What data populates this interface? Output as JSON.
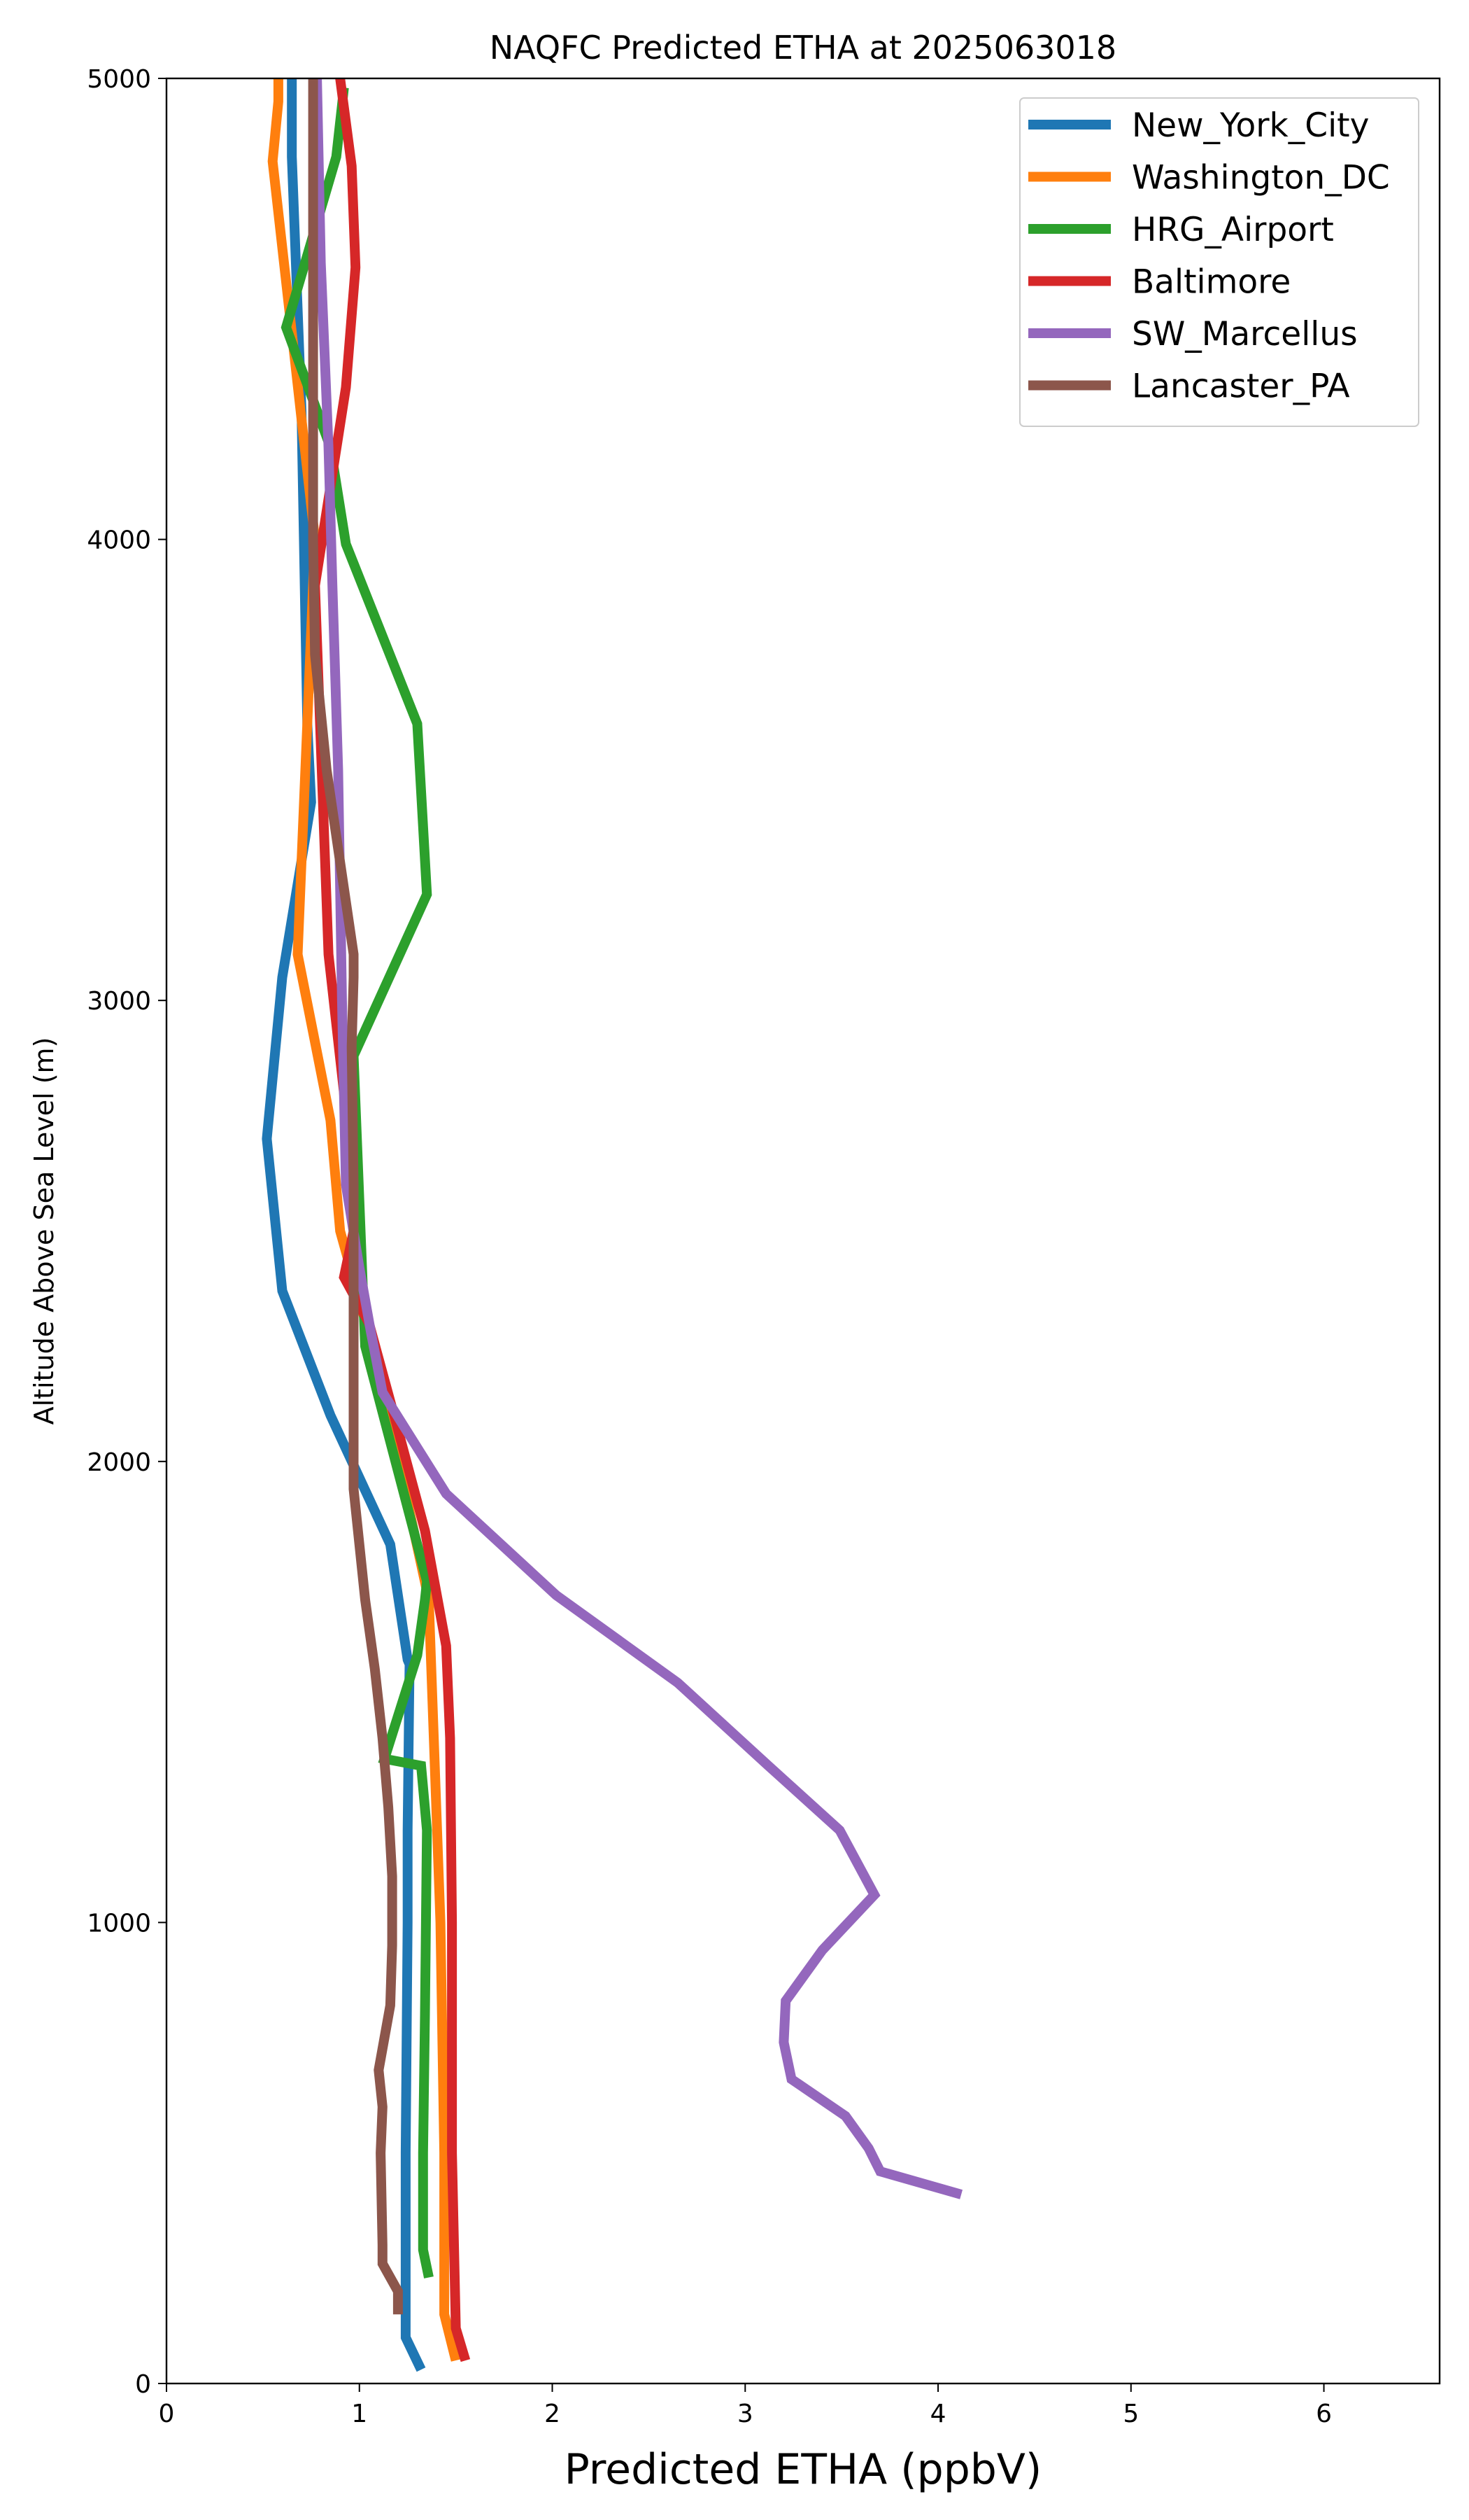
{
  "chart_data": {
    "type": "line",
    "title": "NAQFC Predicted ETHA at 2025063018",
    "xlabel": "Predicted ETHA (ppbV)",
    "ylabel": "Altitude Above Sea Level (m)",
    "xlim": [
      0,
      6.6
    ],
    "ylim": [
      0,
      5000
    ],
    "xticks": [
      0,
      1,
      2,
      3,
      4,
      5,
      6
    ],
    "yticks": [
      0,
      1000,
      2000,
      3000,
      4000,
      5000
    ],
    "legend_position": "top-right",
    "grid": false,
    "series": [
      {
        "name": "New_York_City",
        "color": "#1f77b4",
        "x": [
          1.32,
          1.24,
          1.24,
          1.25,
          1.25,
          1.26,
          1.25,
          1.16,
          0.85,
          0.6,
          0.52,
          0.6,
          0.75,
          0.73,
          0.7,
          0.65,
          0.65
        ],
        "y": [
          30,
          100,
          500,
          1000,
          1200,
          1560,
          1570,
          1820,
          2100,
          2370,
          2700,
          3050,
          3430,
          3600,
          4280,
          4830,
          5000
        ]
      },
      {
        "name": "Washington_DC",
        "color": "#ff7f0e",
        "x": [
          1.5,
          1.44,
          1.44,
          1.42,
          1.36,
          1.1,
          0.9,
          0.85,
          0.68,
          0.72,
          0.77,
          0.55,
          0.58,
          0.58
        ],
        "y": [
          50,
          150,
          500,
          1000,
          1700,
          2200,
          2500,
          2740,
          3100,
          3500,
          4000,
          4820,
          4950,
          5000
        ]
      },
      {
        "name": "HRG_Airport",
        "color": "#2ca02c",
        "x": [
          1.36,
          1.33,
          1.33,
          1.34,
          1.35,
          1.32,
          1.13,
          1.3,
          1.34,
          1.35,
          1.03,
          0.97,
          1.35,
          1.3,
          0.93,
          0.85,
          0.62,
          0.88,
          0.92
        ],
        "y": [
          230,
          290,
          500,
          800,
          1200,
          1340,
          1355,
          1580,
          1700,
          1740,
          2250,
          2880,
          3230,
          3600,
          3990,
          4200,
          4460,
          4830,
          4980
        ]
      },
      {
        "name": "Baltimore",
        "color": "#d62728",
        "x": [
          1.55,
          1.5,
          1.48,
          1.48,
          1.47,
          1.45,
          1.34,
          1.18,
          1.05,
          0.92,
          0.97,
          0.92,
          0.84,
          0.77,
          0.93,
          0.98,
          0.96,
          0.9
        ],
        "y": [
          50,
          120,
          500,
          1000,
          1400,
          1600,
          1850,
          2100,
          2300,
          2400,
          2500,
          2800,
          3100,
          3900,
          4330,
          4590,
          4810,
          5000
        ]
      },
      {
        "name": "SW_Marcellus",
        "color": "#9467bd",
        "x": [
          4.12,
          3.7,
          3.64,
          3.52,
          3.24,
          3.2,
          3.21,
          3.4,
          3.67,
          3.49,
          3.12,
          2.65,
          2.02,
          1.45,
          1.12,
          1.06,
          1.0,
          0.93,
          0.91,
          0.89,
          0.86,
          0.84,
          0.8,
          0.78
        ],
        "y": [
          410,
          460,
          510,
          580,
          660,
          740,
          830,
          940,
          1060,
          1200,
          1340,
          1520,
          1710,
          1930,
          2150,
          2280,
          2420,
          2600,
          3000,
          3500,
          3900,
          4200,
          4600,
          5000
        ]
      },
      {
        "name": "Lancaster_PA",
        "color": "#8c564b",
        "x": [
          1.2,
          1.2,
          1.12,
          1.12,
          1.11,
          1.12,
          1.1,
          1.16,
          1.17,
          1.17,
          1.15,
          1.12,
          1.08,
          1.03,
          0.97,
          0.97,
          0.97,
          0.96,
          0.97,
          0.97,
          0.9,
          0.83,
          0.77,
          0.76,
          0.76,
          0.76
        ],
        "y": [
          150,
          200,
          260,
          300,
          500,
          600,
          680,
          820,
          950,
          1100,
          1250,
          1400,
          1550,
          1700,
          1940,
          2200,
          2600,
          2900,
          3050,
          3100,
          3300,
          3500,
          3750,
          4000,
          4500,
          5000
        ]
      }
    ]
  }
}
